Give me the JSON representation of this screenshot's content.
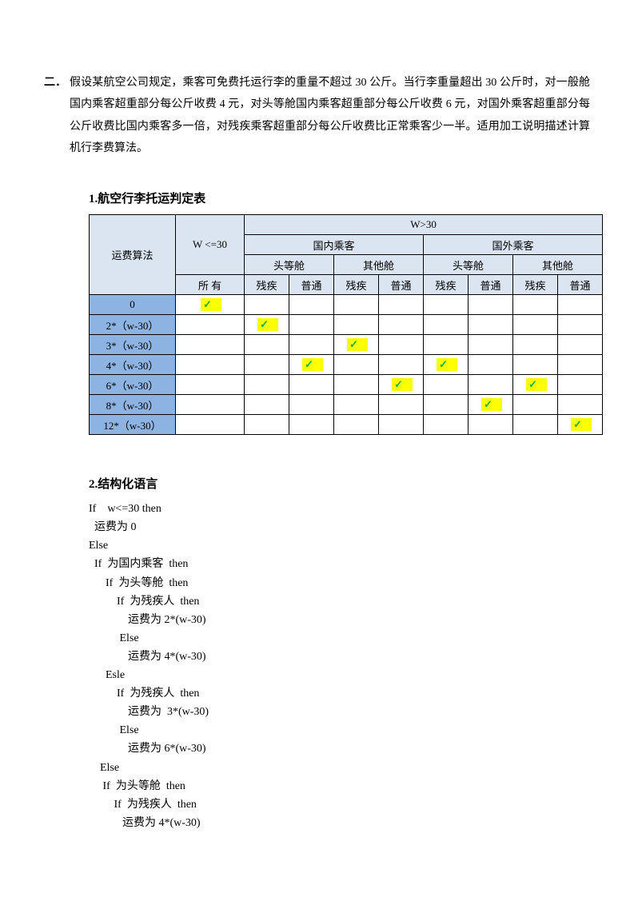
{
  "problem": {
    "number": "二．",
    "text": "假设某航空公司规定，乘客可免费托运行李的重量不超过 30 公斤。当行李重量超出 30 公斤时，对一般舱国内乘客超重部分每公斤收费 4 元，对头等舱国内乘客超重部分每公斤收费 6 元，对国外乘客超重部分每公斤收费比国内乘客多一倍，对残疾乘客超重部分每公斤收费比正常乘客少一半。适用加工说明描述计算机行李费算法。"
  },
  "section1": {
    "title": "1.航空行李托运判定表",
    "headers": {
      "algorithm": "运费算法",
      "w_le_30": "W <=30",
      "w_gt_30": "W>30",
      "domestic": "国内乘客",
      "foreign": "国外乘客",
      "first_class": "头等舱",
      "other_class": "其他舱",
      "all": "所  有",
      "disabled": "残疾",
      "normal": "普通"
    },
    "rows": [
      {
        "label": "0",
        "checks": [
          true,
          false,
          false,
          false,
          false,
          false,
          false,
          false,
          false
        ]
      },
      {
        "label": "2*（w-30）",
        "checks": [
          false,
          true,
          false,
          false,
          false,
          false,
          false,
          false,
          false
        ]
      },
      {
        "label": "3*（w-30）",
        "checks": [
          false,
          false,
          false,
          true,
          false,
          false,
          false,
          false,
          false
        ]
      },
      {
        "label": "4*（w-30）",
        "checks": [
          false,
          false,
          true,
          false,
          false,
          true,
          false,
          false,
          false
        ]
      },
      {
        "label": "6*（w-30）",
        "checks": [
          false,
          false,
          false,
          false,
          true,
          false,
          false,
          true,
          false
        ]
      },
      {
        "label": "8*（w-30）",
        "checks": [
          false,
          false,
          false,
          false,
          false,
          false,
          true,
          false,
          false
        ]
      },
      {
        "label": "12*（w-30）",
        "checks": [
          false,
          false,
          false,
          false,
          false,
          false,
          false,
          false,
          true
        ]
      }
    ],
    "check_glyph": "✓",
    "colors": {
      "header_bg": "#dbe5f1",
      "rowlabel_bg": "#8db3e2",
      "highlight_bg": "#ffff00",
      "check_color": "#00b050",
      "border": "#000000"
    }
  },
  "section2": {
    "title": "2.结构化语言",
    "code": "If    w<=30 then\n  运费为 0\nElse\n  If  为国内乘客  then\n      If  为头等舱  then\n          If  为残疾人  then\n              运费为 2*(w-30)\n           Else\n              运费为 4*(w-30)\n      Esle\n          If  为残疾人  then\n              运费为  3*(w-30)\n           Else\n              运费为 6*(w-30)\n    Else\n     If  为头等舱  then\n         If  为残疾人  then\n            运费为 4*(w-30)"
  }
}
